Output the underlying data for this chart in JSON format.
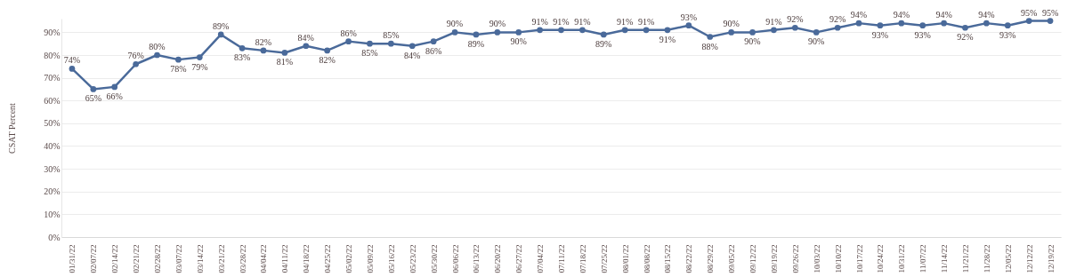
{
  "chart_data": {
    "type": "line",
    "ylabel": "CSAT Percent",
    "categories": [
      "01/31/22",
      "02/07/22",
      "02/14/22",
      "02/21/22",
      "02/28/22",
      "03/07/22",
      "03/14/22",
      "03/21/22",
      "03/28/22",
      "04/04/22",
      "04/11/22",
      "04/18/22",
      "04/25/22",
      "05/02/22",
      "05/09/22",
      "05/16/22",
      "05/23/22",
      "05/30/22",
      "06/06/22",
      "06/13/22",
      "06/20/22",
      "06/27/22",
      "07/04/22",
      "07/11/22",
      "07/18/22",
      "07/25/22",
      "08/01/22",
      "08/08/22",
      "08/15/22",
      "08/22/22",
      "08/29/22",
      "09/05/22",
      "09/12/22",
      "09/19/22",
      "09/26/22",
      "10/03/22",
      "10/10/22",
      "10/17/22",
      "10/24/22",
      "10/31/22",
      "11/07/22",
      "11/14/22",
      "11/21/22",
      "11/28/22",
      "12/05/22",
      "12/12/22",
      "12/19/22"
    ],
    "series": [
      {
        "color": "#4a6a9a",
        "values": [
          74,
          65,
          66,
          76,
          80,
          78,
          79,
          89,
          83,
          82,
          81,
          84,
          82,
          86,
          85,
          85,
          84,
          86,
          90,
          89,
          90,
          90,
          91,
          91,
          91,
          89,
          91,
          91,
          91,
          93,
          88,
          90,
          90,
          91,
          92,
          90,
          92,
          94,
          93,
          94,
          93,
          94,
          92,
          94,
          93,
          95,
          95
        ],
        "value_labels": [
          "74%",
          "65%",
          "66%",
          "76%",
          "80%",
          "78%",
          "79%",
          "89%",
          "83%",
          "82%",
          "81%",
          "84%",
          "82%",
          "86%",
          "85%",
          "85%",
          "84%",
          "86%",
          "90%",
          "89%",
          "90%",
          "90%",
          "91%",
          "91%",
          "91%",
          "89%",
          "91%",
          "91%",
          "91%",
          "93%",
          "88%",
          "90%",
          "90%",
          "91%",
          "92%",
          "90%",
          "92%",
          "94%",
          "93%",
          "94%",
          "93%",
          "94%",
          "92%",
          "94%",
          "93%",
          "95%",
          "95%"
        ]
      }
    ],
    "ylim": [
      0,
      96
    ],
    "yticks": [
      {
        "value": 0,
        "label": "0%"
      },
      {
        "value": 10,
        "label": "10%"
      },
      {
        "value": 20,
        "label": "20%"
      },
      {
        "value": 30,
        "label": "30%"
      },
      {
        "value": 40,
        "label": "40%"
      },
      {
        "value": 50,
        "label": "50%"
      },
      {
        "value": 60,
        "label": "60%"
      },
      {
        "value": 70,
        "label": "70%"
      },
      {
        "value": 80,
        "label": "80%"
      },
      {
        "value": 90,
        "label": "90%"
      }
    ],
    "grid": "y",
    "marker": "circle",
    "line_style": "solid"
  }
}
